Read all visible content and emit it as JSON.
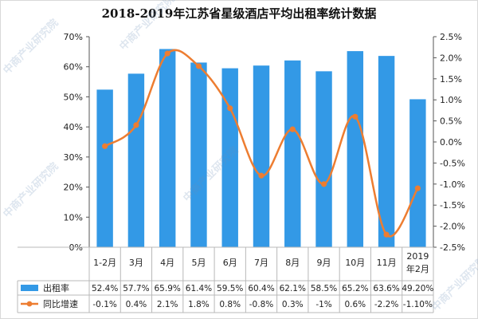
{
  "title": "2018-2019年江苏省星级酒店平均出租率统计数据",
  "watermark": "中商产业研究院",
  "colors": {
    "bar": "#3399e6",
    "line": "#ed7d31",
    "axis": "#555555",
    "grid": "#b8b8b8"
  },
  "chart_data": {
    "type": "bar",
    "categories": [
      "1-2月",
      "3月",
      "4月",
      "5月",
      "6月",
      "7月",
      "8月",
      "9月",
      "10月",
      "11月",
      "2019年2月"
    ],
    "category_lines": [
      [
        "1-2月"
      ],
      [
        "3月"
      ],
      [
        "4月"
      ],
      [
        "5月"
      ],
      [
        "6月"
      ],
      [
        "7月"
      ],
      [
        "8月"
      ],
      [
        "9月"
      ],
      [
        "10月"
      ],
      [
        "11月"
      ],
      [
        "2019",
        "年2月"
      ]
    ],
    "series": [
      {
        "name": "出租率",
        "type": "bar",
        "axis": "left",
        "values": [
          52.4,
          57.7,
          65.9,
          61.4,
          59.5,
          60.4,
          62.1,
          58.5,
          65.2,
          63.6,
          49.2
        ],
        "table_labels": [
          "52.4%",
          "57.7%",
          "65.9%",
          "61.4%",
          "59.5%",
          "60.4%",
          "62.1%",
          "58.5%",
          "65.2%",
          "63.6%",
          "49.20%"
        ]
      },
      {
        "name": "同比增速",
        "type": "line",
        "axis": "right",
        "values": [
          -0.1,
          0.4,
          2.1,
          1.8,
          0.8,
          -0.8,
          0.3,
          -1.0,
          0.6,
          -2.2,
          -1.1
        ],
        "table_labels": [
          "-0.1%",
          "0.4%",
          "2.1%",
          "1.8%",
          "0.8%",
          "-0.8%",
          "0.3%",
          "-1%",
          "0.6%",
          "-2.2%",
          "-1.10%"
        ]
      }
    ],
    "y_left": {
      "min": 0,
      "max": 70,
      "step": 10,
      "ticks": [
        "0%",
        "10%",
        "20%",
        "30%",
        "40%",
        "50%",
        "60%",
        "70%"
      ]
    },
    "y_right": {
      "min": -2.5,
      "max": 2.5,
      "step": 0.5,
      "ticks": [
        "-2.5%",
        "-2.0%",
        "-1.5%",
        "-1.0%",
        "-0.5%",
        "0.0%",
        "0.5%",
        "1.0%",
        "1.5%",
        "2.0%",
        "2.5%"
      ]
    },
    "data_table": true
  }
}
